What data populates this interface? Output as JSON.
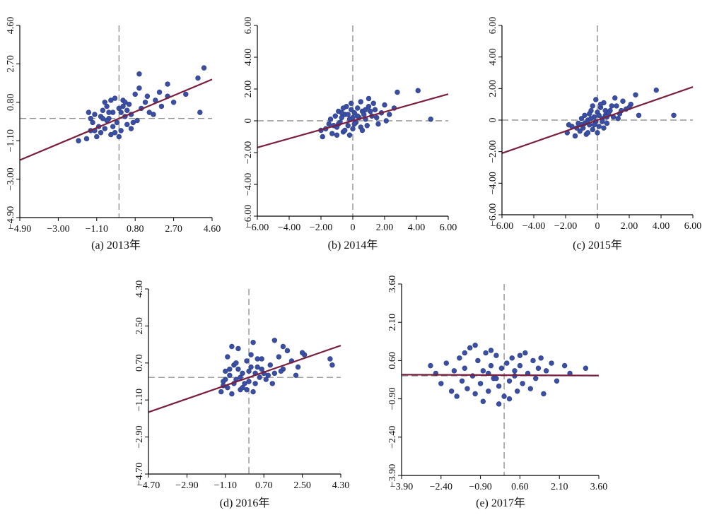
{
  "colors": {
    "point": "#3a4fa3",
    "pointStroke": "#2a3a86",
    "regression": "#7a1f3d",
    "axis": "#000000",
    "refLine": "#808080"
  },
  "chart_data": [
    {
      "type": "scatter",
      "caption": "(a) 2013年",
      "xlim": [
        -4.9,
        4.6
      ],
      "ylim": [
        -4.9,
        4.6
      ],
      "xticks": [
        -4.9,
        -3.0,
        -1.1,
        0.8,
        2.7,
        4.6
      ],
      "yticks": [
        -4.9,
        -3.0,
        -1.1,
        0.8,
        2.7,
        4.6
      ],
      "xtick_labels": [
        "−4.90",
        "−3.00",
        "−1.10",
        "0.80",
        "2.70",
        "4.60"
      ],
      "ytick_labels": [
        "−4.90",
        "−3.00",
        "−1.10",
        "0.80",
        "2.70",
        "4.60"
      ],
      "ref_x": 0,
      "ref_y": 0,
      "regression": {
        "slope": 0.42,
        "intercept": 0.0
      },
      "points": [
        [
          -2.0,
          -1.1
        ],
        [
          -1.6,
          -1.0
        ],
        [
          -1.4,
          -0.6
        ],
        [
          -1.5,
          0.3
        ],
        [
          -1.3,
          -0.2
        ],
        [
          -1.2,
          0.2
        ],
        [
          -1.1,
          -0.9
        ],
        [
          -1.0,
          -0.4
        ],
        [
          -0.9,
          0.1
        ],
        [
          -0.8,
          0.4
        ],
        [
          -0.7,
          -0.5
        ],
        [
          -0.6,
          0.6
        ],
        [
          -0.5,
          0.0
        ],
        [
          -0.4,
          -0.8
        ],
        [
          -0.3,
          0.3
        ],
        [
          -0.2,
          1.0
        ],
        [
          -0.1,
          -0.2
        ],
        [
          0.0,
          0.5
        ],
        [
          0.1,
          -0.6
        ],
        [
          0.2,
          0.9
        ],
        [
          0.3,
          0.1
        ],
        [
          0.4,
          -0.3
        ],
        [
          0.5,
          0.7
        ],
        [
          0.6,
          0.2
        ],
        [
          0.8,
          1.2
        ],
        [
          0.9,
          -0.1
        ],
        [
          1.1,
          0.5
        ],
        [
          1.3,
          0.8
        ],
        [
          1.5,
          0.3
        ],
        [
          1.8,
          0.9
        ],
        [
          2.1,
          0.6
        ],
        [
          2.4,
          1.1
        ],
        [
          2.7,
          0.8
        ],
        [
          -1.2,
          -0.6
        ],
        [
          -0.9,
          -0.7
        ],
        [
          -0.6,
          -0.1
        ],
        [
          -0.3,
          -0.4
        ],
        [
          0.1,
          0.3
        ],
        [
          0.4,
          0.4
        ],
        [
          0.7,
          -0.2
        ],
        [
          1.0,
          1.5
        ],
        [
          1.4,
          1.1
        ],
        [
          1.0,
          2.2
        ],
        [
          2.4,
          1.7
        ],
        [
          3.3,
          1.2
        ],
        [
          3.9,
          2.0
        ],
        [
          4.2,
          2.5
        ],
        [
          4.0,
          0.3
        ],
        [
          -0.8,
          0.0
        ],
        [
          -0.5,
          0.3
        ],
        [
          -0.2,
          -0.7
        ],
        [
          0.3,
          0.8
        ],
        [
          0.6,
          -0.5
        ],
        [
          -1.4,
          0.0
        ],
        [
          -0.7,
          0.8
        ],
        [
          -0.4,
          0.9
        ],
        [
          0.0,
          -0.9
        ],
        [
          0.2,
          0.6
        ],
        [
          1.7,
          0.2
        ],
        [
          2.0,
          1.3
        ]
      ]
    },
    {
      "type": "scatter",
      "caption": "(b) 2014年",
      "xlim": [
        -6,
        6
      ],
      "ylim": [
        -6,
        6
      ],
      "xticks": [
        -6,
        -4,
        -2,
        0,
        2,
        4,
        6
      ],
      "yticks": [
        -6,
        -4,
        -2,
        0,
        2,
        4,
        6
      ],
      "xtick_labels": [
        "−6.00",
        "−4.00",
        "−2.00",
        "0",
        "2.00",
        "4.00",
        "6.00"
      ],
      "ytick_labels": [
        "−6.00",
        "−4.00",
        "−2.00",
        "0",
        "2.00",
        "4.00",
        "6.00"
      ],
      "ref_x": 0,
      "ref_y": 0,
      "regression": {
        "slope": 0.28,
        "intercept": 0.0
      },
      "points": [
        [
          -1.9,
          -1.0
        ],
        [
          -1.7,
          -0.5
        ],
        [
          -1.5,
          -0.2
        ],
        [
          -1.3,
          -0.8
        ],
        [
          -1.1,
          0.3
        ],
        [
          -1.0,
          -0.4
        ],
        [
          -0.9,
          0.6
        ],
        [
          -0.8,
          -0.1
        ],
        [
          -0.7,
          0.2
        ],
        [
          -0.6,
          -0.7
        ],
        [
          -0.5,
          0.4
        ],
        [
          -0.4,
          0.9
        ],
        [
          -0.3,
          -0.3
        ],
        [
          -0.2,
          0.1
        ],
        [
          -0.1,
          1.1
        ],
        [
          0.0,
          -0.5
        ],
        [
          0.1,
          0.5
        ],
        [
          0.2,
          -0.1
        ],
        [
          0.3,
          0.8
        ],
        [
          0.4,
          0.2
        ],
        [
          0.5,
          -0.4
        ],
        [
          0.6,
          0.6
        ],
        [
          0.8,
          0.1
        ],
        [
          1.0,
          0.9
        ],
        [
          1.2,
          0.3
        ],
        [
          1.4,
          0.7
        ],
        [
          1.6,
          -0.2
        ],
        [
          1.8,
          0.5
        ],
        [
          2.0,
          1.0
        ],
        [
          2.3,
          0.4
        ],
        [
          2.6,
          0.8
        ],
        [
          2.8,
          1.8
        ],
        [
          1.0,
          1.4
        ],
        [
          4.1,
          1.9
        ],
        [
          4.9,
          0.1
        ],
        [
          -1.4,
          0.1
        ],
        [
          -1.0,
          -0.9
        ],
        [
          -0.7,
          0.5
        ],
        [
          -0.3,
          0.4
        ],
        [
          0.1,
          -0.2
        ],
        [
          0.5,
          1.2
        ],
        [
          0.9,
          -0.3
        ],
        [
          1.3,
          1.1
        ],
        [
          -1.2,
          -0.3
        ],
        [
          -0.9,
          -0.2
        ],
        [
          -0.5,
          -0.6
        ],
        [
          -0.1,
          0.7
        ],
        [
          0.3,
          0.3
        ],
        [
          0.7,
          0.4
        ],
        [
          1.1,
          0.6
        ],
        [
          1.5,
          0.2
        ],
        [
          -2.0,
          -0.6
        ],
        [
          0.0,
          0.2
        ],
        [
          0.6,
          -0.6
        ],
        [
          2.1,
          0.0
        ],
        [
          -0.6,
          0.8
        ],
        [
          -0.2,
          -0.9
        ],
        [
          0.8,
          0.7
        ]
      ]
    },
    {
      "type": "scatter",
      "caption": "(c) 2015年",
      "xlim": [
        -6,
        6
      ],
      "ylim": [
        -6,
        6
      ],
      "xticks": [
        -6,
        -4,
        -2,
        0,
        2,
        4,
        6
      ],
      "yticks": [
        -6,
        -4,
        -2,
        0,
        2,
        4,
        6
      ],
      "xtick_labels": [
        "−6.00",
        "−4.00",
        "−2.00",
        "0",
        "2.00",
        "4.00",
        "6.00"
      ],
      "ytick_labels": [
        "−6.00",
        "−4.00",
        "−2.00",
        "0",
        "2.00",
        "4.00",
        "6.00"
      ],
      "ref_x": 0,
      "ref_y": 0,
      "regression": {
        "slope": 0.35,
        "intercept": 0.0
      },
      "points": [
        [
          -1.9,
          -0.8
        ],
        [
          -1.6,
          -0.4
        ],
        [
          -1.4,
          -1.0
        ],
        [
          -1.2,
          -0.2
        ],
        [
          -1.1,
          -0.7
        ],
        [
          -1.0,
          0.1
        ],
        [
          -0.9,
          -0.5
        ],
        [
          -0.8,
          0.3
        ],
        [
          -0.7,
          -0.9
        ],
        [
          -0.6,
          0.0
        ],
        [
          -0.5,
          -0.3
        ],
        [
          -0.4,
          0.6
        ],
        [
          -0.3,
          -0.6
        ],
        [
          -0.2,
          0.2
        ],
        [
          -0.1,
          -0.1
        ],
        [
          0.0,
          0.5
        ],
        [
          0.1,
          -0.4
        ],
        [
          0.2,
          0.8
        ],
        [
          0.3,
          0.1
        ],
        [
          0.4,
          1.1
        ],
        [
          0.5,
          0.3
        ],
        [
          0.6,
          -0.2
        ],
        [
          0.8,
          0.6
        ],
        [
          1.0,
          0.2
        ],
        [
          1.2,
          0.9
        ],
        [
          1.4,
          0.4
        ],
        [
          1.6,
          1.2
        ],
        [
          1.8,
          0.7
        ],
        [
          2.1,
          1.0
        ],
        [
          2.4,
          1.6
        ],
        [
          2.6,
          0.3
        ],
        [
          3.7,
          1.9
        ],
        [
          4.8,
          0.3
        ],
        [
          -0.3,
          0.9
        ],
        [
          -0.1,
          1.3
        ],
        [
          0.2,
          1.0
        ],
        [
          -0.5,
          0.4
        ],
        [
          -0.8,
          -0.2
        ],
        [
          -1.3,
          -0.5
        ],
        [
          0.0,
          -0.8
        ],
        [
          0.5,
          0.6
        ],
        [
          0.9,
          0.9
        ],
        [
          1.3,
          0.1
        ],
        [
          -0.6,
          -0.8
        ],
        [
          -0.2,
          -0.3
        ],
        [
          0.3,
          -0.1
        ],
        [
          0.7,
          0.4
        ],
        [
          1.1,
          1.4
        ],
        [
          -1.0,
          -0.3
        ],
        [
          -0.4,
          0.1
        ],
        [
          0.1,
          0.3
        ],
        [
          0.6,
          0.2
        ],
        [
          1.5,
          0.6
        ],
        [
          2.0,
          0.8
        ],
        [
          -1.8,
          -0.3
        ],
        [
          0.4,
          -0.5
        ]
      ]
    },
    {
      "type": "scatter",
      "caption": "(d) 2016年",
      "xlim": [
        -4.7,
        4.3
      ],
      "ylim": [
        -4.7,
        4.3
      ],
      "xticks": [
        -4.7,
        -2.9,
        -1.1,
        0.7,
        2.5,
        4.3
      ],
      "yticks": [
        -4.7,
        -2.9,
        -1.1,
        0.7,
        2.5,
        4.3
      ],
      "xtick_labels": [
        "−4.70",
        "−2.90",
        "−1.10",
        "0.70",
        "2.50",
        "4.30"
      ],
      "ytick_labels": [
        "−4.70",
        "−2.90",
        "−1.10",
        "0.70",
        "2.50",
        "4.30"
      ],
      "ref_x": 0,
      "ref_y": 0,
      "regression": {
        "slope": 0.36,
        "intercept": 0.0
      },
      "points": [
        [
          -1.3,
          -0.7
        ],
        [
          -1.2,
          -0.2
        ],
        [
          -1.1,
          0.3
        ],
        [
          -1.0,
          -0.5
        ],
        [
          -0.9,
          0.1
        ],
        [
          -0.8,
          -0.8
        ],
        [
          -0.7,
          0.6
        ],
        [
          -0.6,
          -0.1
        ],
        [
          -0.5,
          0.4
        ],
        [
          -0.4,
          -0.6
        ],
        [
          -0.3,
          0.2
        ],
        [
          -0.2,
          -0.3
        ],
        [
          -0.1,
          0.8
        ],
        [
          0.0,
          -0.2
        ],
        [
          0.1,
          0.5
        ],
        [
          0.2,
          -0.7
        ],
        [
          0.3,
          0.2
        ],
        [
          0.4,
          0.9
        ],
        [
          0.5,
          0.0
        ],
        [
          0.6,
          0.4
        ],
        [
          0.8,
          -0.1
        ],
        [
          1.0,
          0.6
        ],
        [
          1.2,
          0.2
        ],
        [
          1.4,
          1.0
        ],
        [
          1.6,
          0.4
        ],
        [
          1.8,
          1.3
        ],
        [
          2.0,
          0.8
        ],
        [
          2.3,
          0.5
        ],
        [
          2.6,
          1.1
        ],
        [
          3.9,
          0.6
        ],
        [
          -0.8,
          1.5
        ],
        [
          -1.0,
          1.0
        ],
        [
          -0.5,
          1.4
        ],
        [
          0.2,
          1.7
        ],
        [
          1.2,
          1.8
        ],
        [
          1.6,
          1.5
        ],
        [
          2.5,
          1.2
        ],
        [
          3.8,
          0.9
        ],
        [
          -1.2,
          -0.4
        ],
        [
          -0.9,
          0.4
        ],
        [
          -0.6,
          0.7
        ],
        [
          -0.3,
          -0.5
        ],
        [
          0.0,
          0.3
        ],
        [
          0.3,
          -0.3
        ],
        [
          0.6,
          0.9
        ],
        [
          0.9,
          0.1
        ],
        [
          1.1,
          -0.3
        ],
        [
          -0.7,
          -0.3
        ],
        [
          -0.4,
          0.0
        ],
        [
          -0.1,
          -0.6
        ],
        [
          0.4,
          0.5
        ],
        [
          0.7,
          0.2
        ],
        [
          1.5,
          0.3
        ],
        [
          -1.1,
          -0.1
        ],
        [
          0.1,
          1.1
        ],
        [
          2.2,
          0.1
        ]
      ]
    },
    {
      "type": "scatter",
      "caption": "(e) 2017年",
      "xlim": [
        -3.9,
        3.6
      ],
      "ylim": [
        -3.9,
        3.6
      ],
      "xticks": [
        -3.9,
        -2.4,
        -0.9,
        0.6,
        2.1,
        3.6
      ],
      "yticks": [
        -3.9,
        -2.4,
        -0.9,
        0.6,
        2.1,
        3.6
      ],
      "xtick_labels": [
        "−3.90",
        "−2.40",
        "−0.90",
        "0.60",
        "2.10",
        "3.60"
      ],
      "ytick_labels": [
        "−3.90",
        "−2.40",
        "−0.90",
        "0.60",
        "2.10",
        "3.60"
      ],
      "ref_x": 0,
      "ref_y": 0,
      "regression": {
        "slope": -0.005,
        "intercept": 0.03
      },
      "points": [
        [
          -2.8,
          0.4
        ],
        [
          -2.6,
          0.1
        ],
        [
          -2.4,
          -0.3
        ],
        [
          -2.2,
          0.5
        ],
        [
          -2.0,
          -0.6
        ],
        [
          -1.9,
          0.2
        ],
        [
          -1.8,
          -0.8
        ],
        [
          -1.7,
          0.7
        ],
        [
          -1.6,
          -0.2
        ],
        [
          -1.5,
          0.3
        ],
        [
          -1.4,
          -0.5
        ],
        [
          -1.3,
          1.1
        ],
        [
          -1.2,
          0.0
        ],
        [
          -1.1,
          -0.7
        ],
        [
          -1.0,
          0.6
        ],
        [
          -0.9,
          -0.3
        ],
        [
          -0.8,
          0.2
        ],
        [
          -0.7,
          0.9
        ],
        [
          -0.6,
          -0.6
        ],
        [
          -0.5,
          0.4
        ],
        [
          -0.4,
          -0.1
        ],
        [
          -0.3,
          0.8
        ],
        [
          -0.2,
          -0.4
        ],
        [
          -0.1,
          0.3
        ],
        [
          0.0,
          -0.8
        ],
        [
          0.1,
          0.5
        ],
        [
          0.2,
          -0.2
        ],
        [
          0.3,
          0.7
        ],
        [
          0.4,
          0.0
        ],
        [
          0.5,
          -0.6
        ],
        [
          0.6,
          0.4
        ],
        [
          0.7,
          -0.3
        ],
        [
          0.8,
          0.9
        ],
        [
          0.9,
          0.1
        ],
        [
          1.0,
          -0.5
        ],
        [
          1.1,
          0.6
        ],
        [
          1.2,
          -0.1
        ],
        [
          1.3,
          0.3
        ],
        [
          1.5,
          -0.7
        ],
        [
          1.6,
          0.2
        ],
        [
          1.8,
          0.5
        ],
        [
          2.0,
          -0.2
        ],
        [
          2.3,
          0.4
        ],
        [
          2.5,
          0.1
        ],
        [
          3.1,
          0.3
        ],
        [
          -1.1,
          1.2
        ],
        [
          -0.5,
          1.0
        ],
        [
          -0.2,
          -1.1
        ],
        [
          0.2,
          -0.9
        ],
        [
          -0.8,
          -1.0
        ],
        [
          0.6,
          0.8
        ],
        [
          -1.5,
          0.9
        ],
        [
          -0.3,
          -0.1
        ],
        [
          0.4,
          0.2
        ],
        [
          1.4,
          0.7
        ],
        [
          -0.6,
          0.1
        ]
      ]
    }
  ]
}
